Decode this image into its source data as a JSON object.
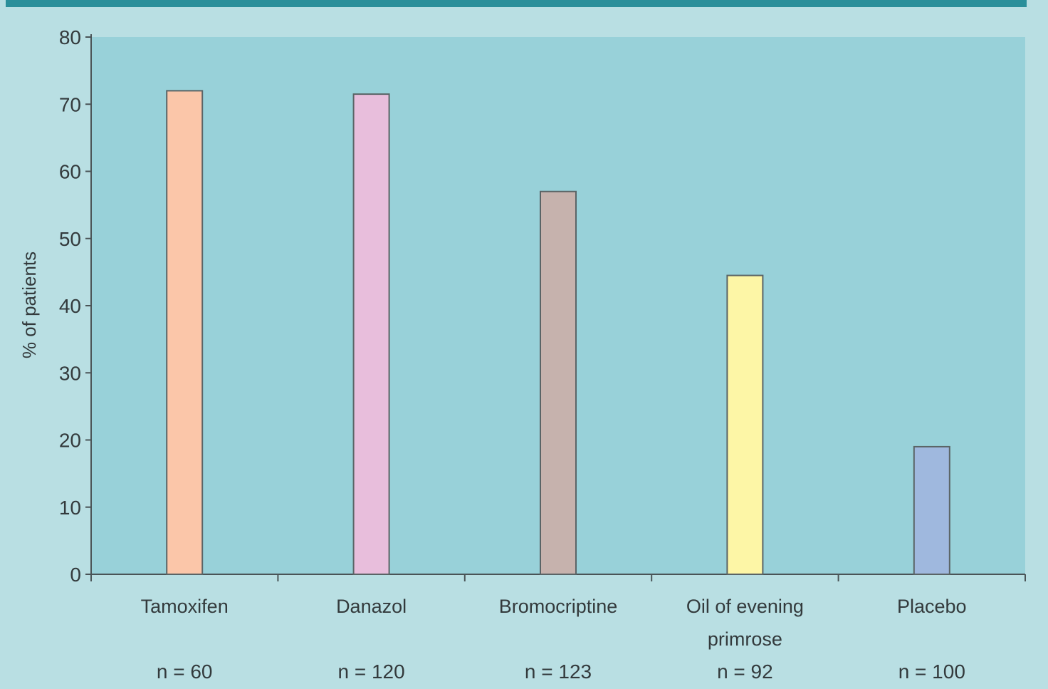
{
  "chart_data": {
    "type": "bar",
    "ylabel": "% of patients",
    "ylim": [
      0,
      80
    ],
    "yticks": [
      0,
      10,
      20,
      30,
      40,
      50,
      60,
      70,
      80
    ],
    "grid": false,
    "categories": [
      {
        "label": [
          "Tamoxifen"
        ],
        "n": "n = 60",
        "value": 72,
        "color": "#fbc6a9"
      },
      {
        "label": [
          "Danazol"
        ],
        "n": "n = 120",
        "value": 71.5,
        "color": "#e8bedc"
      },
      {
        "label": [
          "Bromocriptine"
        ],
        "n": "n = 123",
        "value": 57,
        "color": "#c6b2ad"
      },
      {
        "label": [
          "Oil of evening",
          "primrose"
        ],
        "n": "n = 92",
        "value": 44.5,
        "color": "#fdf6a6"
      },
      {
        "label": [
          "Placebo"
        ],
        "n": "n = 100",
        "value": 19,
        "color": "#9fb8de"
      }
    ]
  },
  "colors": {
    "page_background": "#b9dfe3",
    "plot_background": "#98d1d9",
    "top_band": "#2a8f9a",
    "axis": "#4a5457",
    "bar_outline": "#5a6466"
  }
}
